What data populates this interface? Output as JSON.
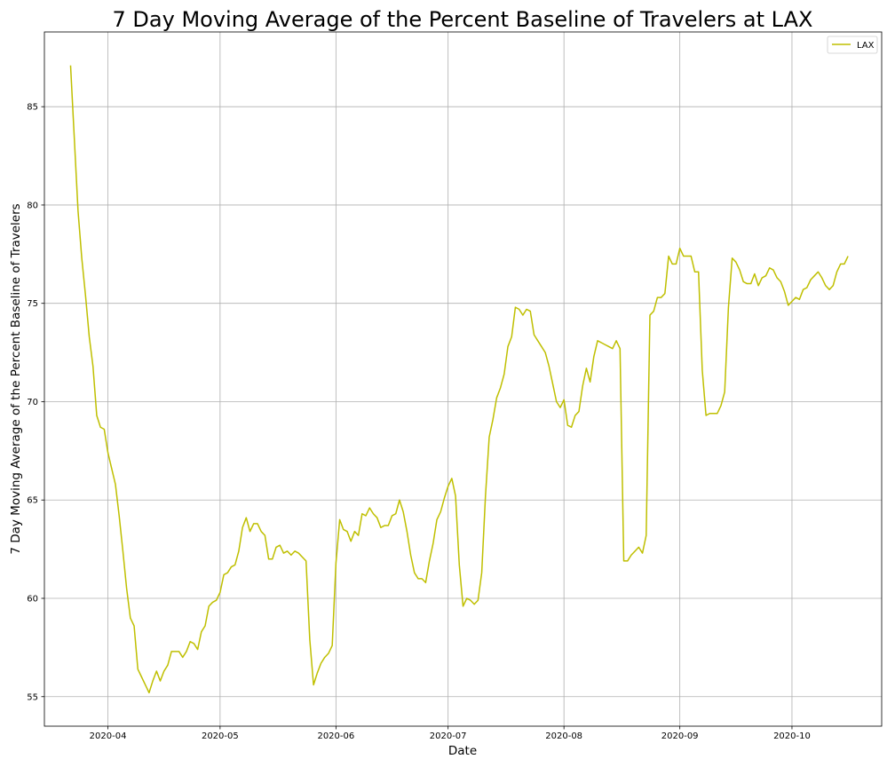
{
  "chart_data": {
    "type": "line",
    "title": "7 Day Moving Average of the Percent Baseline of Travelers at LAX",
    "xlabel": "Date",
    "ylabel": "7 Day Moving Average of the Percent Baseline of Travelers",
    "x_type": "date",
    "xlim": [
      "2020-03-15",
      "2020-10-25"
    ],
    "ylim": [
      53.5,
      88.8
    ],
    "x_ticks": [
      "2020-04",
      "2020-05",
      "2020-06",
      "2020-07",
      "2020-08",
      "2020-09",
      "2020-10"
    ],
    "x_tick_dates": [
      "2020-04-01",
      "2020-05-01",
      "2020-06-01",
      "2020-07-01",
      "2020-08-01",
      "2020-09-01",
      "2020-10-01"
    ],
    "y_ticks": [
      55,
      60,
      65,
      70,
      75,
      80,
      85
    ],
    "grid": true,
    "legend_position": "top-right",
    "line_color": "#bfbf00",
    "series": [
      {
        "name": "LAX",
        "color": "#bfbf00",
        "x": [
          "2020-03-22",
          "2020-03-23",
          "2020-03-24",
          "2020-03-25",
          "2020-03-26",
          "2020-03-27",
          "2020-03-28",
          "2020-03-29",
          "2020-03-30",
          "2020-03-31",
          "2020-04-01",
          "2020-04-02",
          "2020-04-03",
          "2020-04-04",
          "2020-04-05",
          "2020-04-06",
          "2020-04-07",
          "2020-04-08",
          "2020-04-09",
          "2020-04-10",
          "2020-04-11",
          "2020-04-12",
          "2020-04-13",
          "2020-04-14",
          "2020-04-15",
          "2020-04-16",
          "2020-04-17",
          "2020-04-18",
          "2020-04-19",
          "2020-04-20",
          "2020-04-21",
          "2020-04-22",
          "2020-04-23",
          "2020-04-24",
          "2020-04-25",
          "2020-04-26",
          "2020-04-27",
          "2020-04-28",
          "2020-04-29",
          "2020-04-30",
          "2020-05-01",
          "2020-05-02",
          "2020-05-03",
          "2020-05-04",
          "2020-05-05",
          "2020-05-06",
          "2020-05-07",
          "2020-05-08",
          "2020-05-09",
          "2020-05-10",
          "2020-05-11",
          "2020-05-12",
          "2020-05-13",
          "2020-05-14",
          "2020-05-15",
          "2020-05-16",
          "2020-05-17",
          "2020-05-18",
          "2020-05-19",
          "2020-05-20",
          "2020-05-21",
          "2020-05-22",
          "2020-05-23",
          "2020-05-24",
          "2020-05-25",
          "2020-05-26",
          "2020-05-27",
          "2020-05-28",
          "2020-05-29",
          "2020-05-30",
          "2020-05-31",
          "2020-06-01",
          "2020-06-02",
          "2020-06-03",
          "2020-06-04",
          "2020-06-05",
          "2020-06-06",
          "2020-06-07",
          "2020-06-08",
          "2020-06-09",
          "2020-06-10",
          "2020-06-11",
          "2020-06-12",
          "2020-06-13",
          "2020-06-14",
          "2020-06-15",
          "2020-06-16",
          "2020-06-17",
          "2020-06-18",
          "2020-06-19",
          "2020-06-20",
          "2020-06-21",
          "2020-06-22",
          "2020-06-23",
          "2020-06-24",
          "2020-06-25",
          "2020-06-26",
          "2020-06-27",
          "2020-06-28",
          "2020-06-29",
          "2020-06-30",
          "2020-07-01",
          "2020-07-02",
          "2020-07-03",
          "2020-07-04",
          "2020-07-05",
          "2020-07-06",
          "2020-07-07",
          "2020-07-08",
          "2020-07-09",
          "2020-07-10",
          "2020-07-11",
          "2020-07-12",
          "2020-07-13",
          "2020-07-14",
          "2020-07-15",
          "2020-07-16",
          "2020-07-17",
          "2020-07-18",
          "2020-07-19",
          "2020-07-20",
          "2020-07-21",
          "2020-07-22",
          "2020-07-23",
          "2020-07-24",
          "2020-07-25",
          "2020-07-26",
          "2020-07-27",
          "2020-07-28",
          "2020-07-29",
          "2020-07-30",
          "2020-07-31",
          "2020-08-01",
          "2020-08-02",
          "2020-08-03",
          "2020-08-04",
          "2020-08-05",
          "2020-08-06",
          "2020-08-07",
          "2020-08-08",
          "2020-08-09",
          "2020-08-10",
          "2020-08-11",
          "2020-08-12",
          "2020-08-13",
          "2020-08-14",
          "2020-08-15",
          "2020-08-16",
          "2020-08-17",
          "2020-08-18",
          "2020-08-19",
          "2020-08-20",
          "2020-08-21",
          "2020-08-22",
          "2020-08-23",
          "2020-08-24",
          "2020-08-25",
          "2020-08-26",
          "2020-08-27",
          "2020-08-28",
          "2020-08-29",
          "2020-08-30",
          "2020-08-31",
          "2020-09-01",
          "2020-09-02",
          "2020-09-03",
          "2020-09-04",
          "2020-09-05",
          "2020-09-06",
          "2020-09-07",
          "2020-09-08",
          "2020-09-09",
          "2020-09-10",
          "2020-09-11",
          "2020-09-12",
          "2020-09-13",
          "2020-09-14",
          "2020-09-15",
          "2020-09-16",
          "2020-09-17",
          "2020-09-18",
          "2020-09-19",
          "2020-09-20",
          "2020-09-21",
          "2020-09-22",
          "2020-09-23",
          "2020-09-24",
          "2020-09-25",
          "2020-09-26",
          "2020-09-27",
          "2020-09-28",
          "2020-09-29",
          "2020-09-30",
          "2020-10-01",
          "2020-10-02",
          "2020-10-03",
          "2020-10-04",
          "2020-10-05",
          "2020-10-06",
          "2020-10-07",
          "2020-10-08",
          "2020-10-09",
          "2020-10-10",
          "2020-10-11",
          "2020-10-12",
          "2020-10-13",
          "2020-10-14",
          "2020-10-15",
          "2020-10-16"
        ],
        "y": [
          87.1,
          83.4,
          79.7,
          77.3,
          75.4,
          73.3,
          71.8,
          69.3,
          68.7,
          68.6,
          67.4,
          66.6,
          65.8,
          64.2,
          62.4,
          60.5,
          59.0,
          58.6,
          56.4,
          56.0,
          55.6,
          55.2,
          55.8,
          56.3,
          55.8,
          56.3,
          56.6,
          57.3,
          57.3,
          57.3,
          57.0,
          57.3,
          57.8,
          57.7,
          57.4,
          58.3,
          58.6,
          59.6,
          59.8,
          59.9,
          60.3,
          61.2,
          61.3,
          61.6,
          61.7,
          62.4,
          63.6,
          64.1,
          63.4,
          63.8,
          63.8,
          63.4,
          63.2,
          62.0,
          62.0,
          62.6,
          62.7,
          62.3,
          62.4,
          62.2,
          62.4,
          62.3,
          62.1,
          61.9,
          57.9,
          55.6,
          56.2,
          56.7,
          57.0,
          57.2,
          57.6,
          61.8,
          64.0,
          63.5,
          63.4,
          62.9,
          63.4,
          63.2,
          64.3,
          64.2,
          64.6,
          64.3,
          64.1,
          63.6,
          63.7,
          63.7,
          64.2,
          64.3,
          65.0,
          64.4,
          63.4,
          62.2,
          61.3,
          61.0,
          61.0,
          60.8,
          61.9,
          62.8,
          64.0,
          64.4,
          65.1,
          65.7,
          66.1,
          65.2,
          61.7,
          59.6,
          60.0,
          59.9,
          59.7,
          59.9,
          61.3,
          65.2,
          68.2,
          69.1,
          70.2,
          70.7,
          71.4,
          72.8,
          73.3,
          74.8,
          74.7,
          74.4,
          74.7,
          74.6,
          73.4,
          73.1,
          72.8,
          72.5,
          71.8,
          70.9,
          70.0,
          69.7,
          70.1,
          68.8,
          68.7,
          69.3,
          69.5,
          70.8,
          71.7,
          71.0,
          72.3,
          73.1,
          73.0,
          72.9,
          72.8,
          72.7,
          73.1,
          72.7,
          61.9,
          61.9,
          62.2,
          62.4,
          62.6,
          62.3,
          63.2,
          74.4,
          74.6,
          75.3,
          75.3,
          75.5,
          77.4,
          77.0,
          77.0,
          77.8,
          77.4,
          77.4,
          77.4,
          76.6,
          76.6,
          71.6,
          69.3,
          69.4,
          69.4,
          69.4,
          69.8,
          70.5,
          74.8,
          77.3,
          77.1,
          76.7,
          76.1,
          76.0,
          76.0,
          76.5,
          75.9,
          76.3,
          76.4,
          76.8,
          76.7,
          76.3,
          76.1,
          75.6,
          74.9,
          75.1,
          75.3,
          75.2,
          75.7,
          75.8,
          76.2,
          76.4,
          76.6,
          76.3,
          75.9,
          75.7,
          75.9,
          76.6,
          77.0,
          77.0,
          77.4
        ]
      }
    ]
  }
}
